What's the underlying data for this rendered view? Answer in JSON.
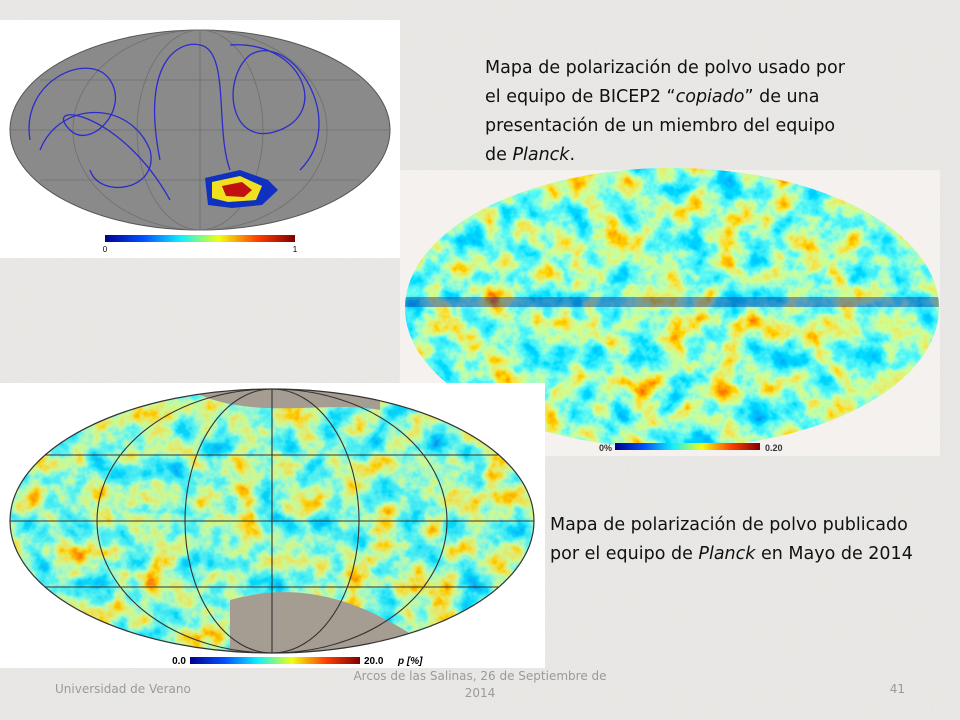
{
  "captions": [
    {
      "parts": [
        "Mapa de polarización de polvo usado por el equipo de BICEP2 “",
        "copiado",
        "” de una presentación de un miembro del equipo de ",
        "Planck",
        "."
      ]
    },
    {
      "parts": [
        "Mapa de polarización de polvo publicado por el equipo de ",
        "Planck",
        " en Mayo de 2014"
      ]
    }
  ],
  "figures": [
    {
      "colorbar": [
        "0",
        "1"
      ]
    },
    {
      "colorbar": [
        "0%",
        "0.20"
      ]
    },
    {
      "colorbar": [
        "0.0",
        "20.0",
        "p [%]"
      ]
    }
  ],
  "footer": {
    "left": "Universidad de Verano",
    "center": "Arcos de las Salinas, 26 de Septiembre de 2014",
    "page": "41"
  }
}
